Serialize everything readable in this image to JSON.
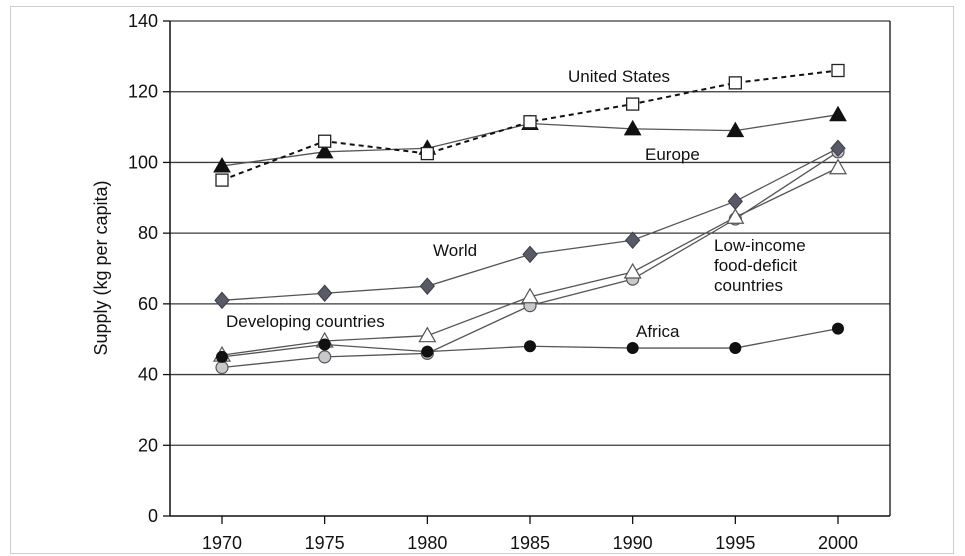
{
  "chart_data": {
    "type": "line",
    "title": "",
    "ylabel": "Supply (kg per capita)",
    "xlabel": "",
    "x": [
      1970,
      1975,
      1980,
      1985,
      1990,
      1995,
      2000
    ],
    "xticks": [
      "1970",
      "1975",
      "1980",
      "1985",
      "1990",
      "1995",
      "2000"
    ],
    "ylim": [
      0,
      140
    ],
    "yticks": [
      "0",
      "20",
      "40",
      "60",
      "80",
      "100",
      "120",
      "140"
    ],
    "grid": "horizontal",
    "series": [
      {
        "name": "United States",
        "marker": "open-square",
        "line": "dashed",
        "values": [
          95,
          106,
          102.5,
          111.5,
          116.5,
          122.5,
          126
        ]
      },
      {
        "name": "Europe",
        "marker": "filled-triangle",
        "line": "solid",
        "values": [
          99,
          103,
          104,
          111,
          109.5,
          109,
          113.5
        ]
      },
      {
        "name": "World",
        "marker": "filled-diamond",
        "line": "solid",
        "values": [
          61,
          63,
          65,
          74,
          78,
          89,
          104
        ]
      },
      {
        "name": "Low-income food-deficit countries",
        "label_lines": [
          "Low-income",
          "food-deficit",
          "countries"
        ],
        "marker": "open-circle",
        "line": "solid",
        "values": [
          42,
          45,
          46,
          59.5,
          67,
          84,
          103
        ]
      },
      {
        "name": "Developing countries",
        "marker": "open-triangle",
        "line": "solid",
        "values": [
          45.5,
          49.5,
          51,
          62,
          69,
          84.5,
          98.5
        ]
      },
      {
        "name": "Africa",
        "marker": "filled-circle",
        "line": "solid",
        "values": [
          45,
          48.5,
          46.5,
          48,
          47.5,
          47.5,
          53
        ]
      }
    ]
  }
}
